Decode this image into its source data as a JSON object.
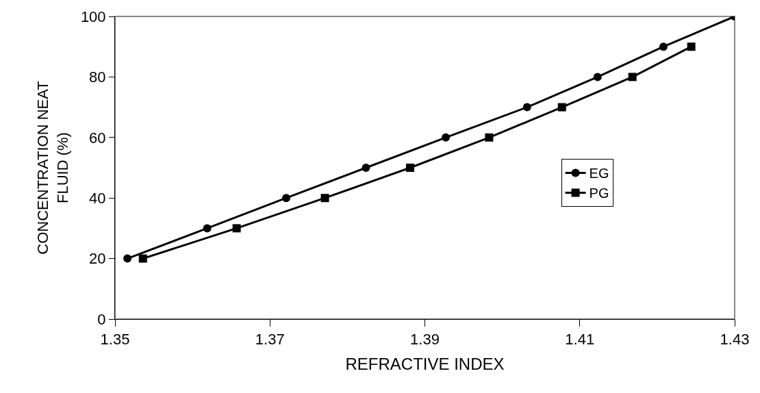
{
  "chart_data": {
    "type": "line",
    "xlabel": "REFRACTIVE INDEX",
    "ylabel": "CONCENTRATION NEAT\nFLUID (%)",
    "xlim": [
      1.35,
      1.43
    ],
    "xticks": [
      1.35,
      1.37,
      1.39,
      1.41,
      1.43
    ],
    "ylim": [
      0,
      100
    ],
    "yticks": [
      0,
      20,
      40,
      60,
      80,
      100
    ],
    "grid": false,
    "legend": "right",
    "series": [
      {
        "name": "EG",
        "color": "#000000",
        "marker": "circle",
        "x": [
          1.3516,
          1.3619,
          1.3721,
          1.3824,
          1.3927,
          1.4032,
          1.4123,
          1.4208,
          1.43
        ],
        "values": [
          20,
          30,
          40,
          50,
          60,
          70,
          80,
          90,
          100
        ]
      },
      {
        "name": "PG",
        "color": "#000000",
        "marker": "square",
        "x": [
          1.3536,
          1.3657,
          1.3771,
          1.3881,
          1.3983,
          1.4077,
          1.4168,
          1.4244
        ],
        "values": [
          20,
          30,
          40,
          50,
          60,
          70,
          80,
          90
        ]
      }
    ]
  }
}
